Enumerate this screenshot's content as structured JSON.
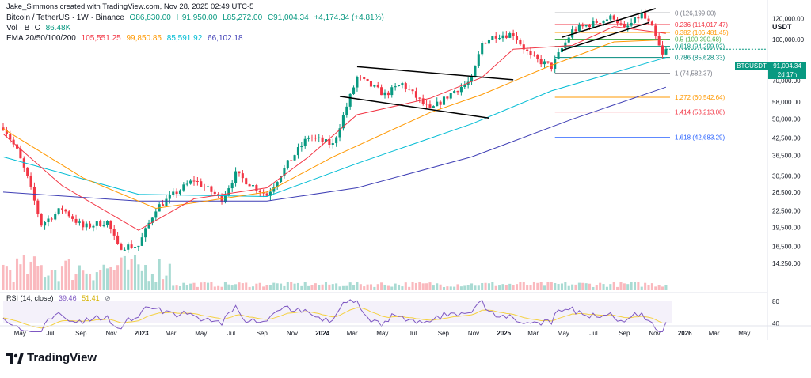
{
  "credit": "Jake_Simmons created with TradingView.com, Nov 28, 2025 02:49 UTC-5",
  "legend": {
    "symbol": "Bitcoin / TetherUS · 1W · Binance",
    "o": "O86,830.00",
    "h": "H91,950.00",
    "l": "L85,272.00",
    "c": "C91,004.34",
    "chg": "+4,174.34 (+4.81%)",
    "vol_label": "Vol · BTC",
    "vol_value": "86.48K",
    "ema_label": "EMA 20/50/100/200",
    "ema20": "105,551.25",
    "ema50": "99,850.85",
    "ema100": "85,591.92",
    "ema200": "66,102.18"
  },
  "rsi": {
    "label": "RSI (14, close)",
    "value": "39.46",
    "ma": "51.41"
  },
  "currency": "USDT",
  "price_tag": {
    "symbol": "BTCUSDT",
    "price": "91,004.34",
    "countdown": "2d 17h"
  },
  "branding": "TradingView",
  "colors": {
    "up": "#089981",
    "down": "#f23645",
    "ema20": "#f23645",
    "ema50": "#ff9800",
    "ema100": "#00bcd4",
    "ema200": "#3f3fb5",
    "rsi": "#7e57c2",
    "rsi_ma": "#f5d142",
    "price_tag": "#089981"
  },
  "chart_data": {
    "type": "candlestick",
    "title": "Bitcoin / TetherUS · 1W · Binance",
    "x_ticks": [
      "May",
      "Jul",
      "Sep",
      "Nov",
      "2023",
      "Mar",
      "May",
      "Jul",
      "Sep",
      "Nov",
      "2024",
      "Mar",
      "May",
      "Jul",
      "Sep",
      "Nov",
      "2025",
      "Mar",
      "May",
      "Jul",
      "Sep",
      "Nov",
      "2026",
      "Mar",
      "May"
    ],
    "y_scale": "log",
    "y_ticks": [
      "120,000.00",
      "100,000.00",
      "70,000.00",
      "58,000.00",
      "50,000.00",
      "42,500.00",
      "36,500.00",
      "30,500.00",
      "26,500.00",
      "22,500.00",
      "19,500.00",
      "16,500.00",
      "14,250.00"
    ],
    "y_tick_values": [
      120000,
      100000,
      70000,
      58000,
      50000,
      42500,
      36500,
      30500,
      26500,
      22500,
      19500,
      16500,
      14250
    ],
    "fibonacci": [
      {
        "level": "0",
        "value": 126199,
        "text": "0 (126,199.00)",
        "color": "#787b86"
      },
      {
        "level": "0.236",
        "value": 114017.47,
        "text": "0.236 (114,017.47)",
        "color": "#f23645"
      },
      {
        "level": "0.382",
        "value": 106481.45,
        "text": "0.382 (106,481.45)",
        "color": "#ff9800"
      },
      {
        "level": "0.5",
        "value": 100390.68,
        "text": "0.5 (100,390.68)",
        "color": "#4caf50"
      },
      {
        "level": "0.618",
        "value": 94299.92,
        "text": "0.618 (94,299.92)",
        "color": "#089981"
      },
      {
        "level": "0.786",
        "value": 85628.33,
        "text": "0.786 (85,628.33)",
        "color": "#00897b"
      },
      {
        "level": "1",
        "value": 74582.37,
        "text": "1 (74,582.37)",
        "color": "#787b86"
      },
      {
        "level": "1.272",
        "value": 60542.64,
        "text": "1.272 (60,542.64)",
        "color": "#ff9800"
      },
      {
        "level": "1.414",
        "value": 53213.08,
        "text": "1.414 (53,213.08)",
        "color": "#f23645"
      },
      {
        "level": "1.618",
        "value": 42683.29,
        "text": "1.618 (42,683.29)",
        "color": "#2962ff"
      }
    ],
    "price_path": [
      [
        "2022-03-28",
        47000
      ],
      [
        "2022-04-25",
        38000
      ],
      [
        "2022-05-16",
        30000
      ],
      [
        "2022-06-13",
        20000
      ],
      [
        "2022-07-25",
        23000
      ],
      [
        "2022-09-05",
        19500
      ],
      [
        "2022-10-24",
        20500
      ],
      [
        "2022-11-14",
        16500
      ],
      [
        "2022-12-26",
        16600
      ],
      [
        "2023-01-30",
        23000
      ],
      [
        "2023-03-13",
        26500
      ],
      [
        "2023-04-17",
        29500
      ],
      [
        "2023-06-12",
        25000
      ],
      [
        "2023-07-10",
        31000
      ],
      [
        "2023-09-11",
        25800
      ],
      [
        "2023-10-23",
        34000
      ],
      [
        "2023-12-04",
        43000
      ],
      [
        "2024-01-22",
        40000
      ],
      [
        "2024-03-11",
        72000
      ],
      [
        "2024-05-06",
        62000
      ],
      [
        "2024-06-10",
        68000
      ],
      [
        "2024-08-05",
        54000
      ],
      [
        "2024-09-23",
        64000
      ],
      [
        "2024-10-28",
        70000
      ],
      [
        "2024-11-18",
        97000
      ],
      [
        "2024-12-16",
        104000
      ],
      [
        "2025-01-20",
        105000
      ],
      [
        "2025-02-24",
        86000
      ],
      [
        "2025-04-07",
        79000
      ],
      [
        "2025-05-19",
        108000
      ],
      [
        "2025-07-14",
        118000
      ],
      [
        "2025-08-11",
        122000
      ],
      [
        "2025-09-01",
        109000
      ],
      [
        "2025-10-06",
        125000
      ],
      [
        "2025-10-27",
        110000
      ],
      [
        "2025-11-17",
        86800
      ],
      [
        "2025-11-24",
        91004
      ]
    ],
    "ema_paths": {
      "ema20": [
        [
          "2022-03-28",
          44000
        ],
        [
          "2022-07-25",
          28000
        ],
        [
          "2022-12-26",
          19000
        ],
        [
          "2023-04-17",
          25000
        ],
        [
          "2023-09-11",
          27500
        ],
        [
          "2023-12-04",
          36000
        ],
        [
          "2024-03-11",
          52000
        ],
        [
          "2024-08-05",
          60000
        ],
        [
          "2024-11-18",
          72000
        ],
        [
          "2025-01-20",
          92000
        ],
        [
          "2025-05-19",
          95000
        ],
        [
          "2025-08-11",
          112000
        ],
        [
          "2025-11-24",
          105551
        ]
      ],
      "ema50": [
        [
          "2022-03-28",
          46000
        ],
        [
          "2022-09-05",
          30000
        ],
        [
          "2023-01-30",
          23000
        ],
        [
          "2023-09-11",
          26500
        ],
        [
          "2024-01-22",
          36000
        ],
        [
          "2024-08-05",
          53000
        ],
        [
          "2024-11-18",
          62000
        ],
        [
          "2025-04-07",
          80000
        ],
        [
          "2025-08-11",
          98000
        ],
        [
          "2025-11-24",
          99850
        ]
      ],
      "ema100": [
        [
          "2022-03-28",
          36000
        ],
        [
          "2022-12-26",
          26000
        ],
        [
          "2023-09-11",
          25500
        ],
        [
          "2024-03-11",
          34000
        ],
        [
          "2024-10-28",
          48000
        ],
        [
          "2025-04-07",
          64000
        ],
        [
          "2025-11-24",
          85592
        ]
      ],
      "ema200": [
        [
          "2022-03-28",
          26500
        ],
        [
          "2022-12-26",
          24500
        ],
        [
          "2023-09-11",
          24500
        ],
        [
          "2024-03-11",
          27500
        ],
        [
          "2024-10-28",
          36000
        ],
        [
          "2025-05-19",
          50000
        ],
        [
          "2025-11-24",
          66102
        ]
      ]
    },
    "trendlines": [
      {
        "from": [
          "2024-03-11",
          79000
        ],
        "to": [
          "2025-01-20",
          70500
        ],
        "color": "#000000"
      },
      {
        "from": [
          "2024-02-05",
          61000
        ],
        "to": [
          "2024-12-02",
          50500
        ],
        "color": "#000000"
      },
      {
        "from": [
          "2025-04-28",
          102000
        ],
        "to": [
          "2025-11-03",
          131000
        ],
        "color": "#000000"
      },
      {
        "from": [
          "2025-04-28",
          91000
        ],
        "to": [
          "2025-10-20",
          116000
        ],
        "color": "#000000"
      }
    ],
    "rsi_axis_ticks": [
      80,
      40
    ]
  }
}
